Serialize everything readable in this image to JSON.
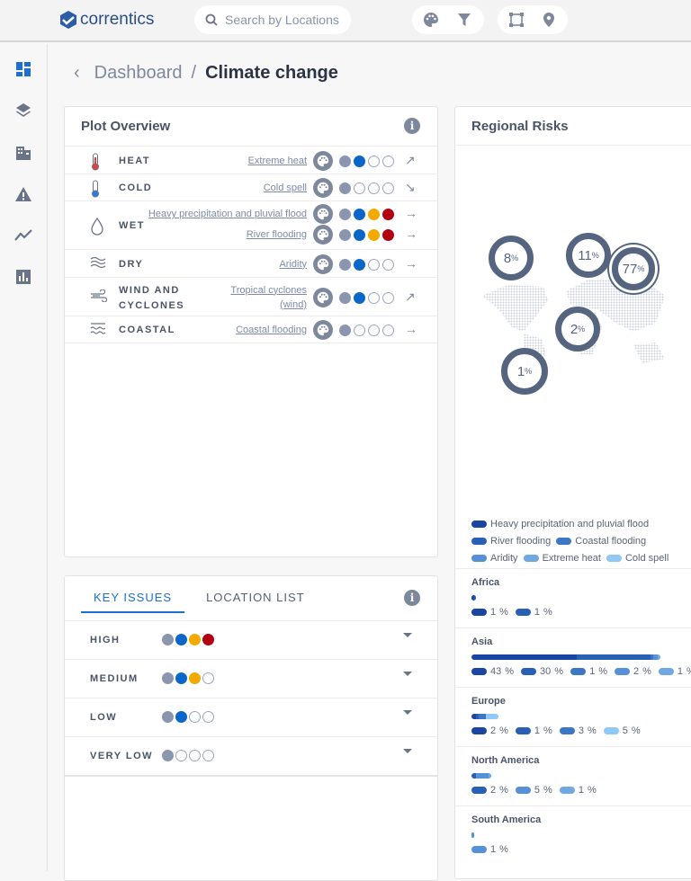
{
  "header": {
    "logo": "correntics",
    "search_placeholder": "Search by Locations"
  },
  "breadcrumb": {
    "parent": "Dashboard",
    "separator": "/",
    "current": "Climate change"
  },
  "colors": {
    "grey": "#8a96b0",
    "blue": "#0a66c8",
    "orange": "#f2aa00",
    "red": "#b00012"
  },
  "plot_overview": {
    "title": "Plot Overview",
    "rows": [
      {
        "category": "HEAT",
        "hazards": [
          {
            "name": "Extreme heat",
            "level": 2,
            "trend": "↗"
          }
        ]
      },
      {
        "category": "COLD",
        "hazards": [
          {
            "name": "Cold spell",
            "level": 1,
            "trend": "↘"
          }
        ]
      },
      {
        "category": "WET",
        "hazards": [
          {
            "name": "Heavy precipitation and pluvial flood",
            "level": 4,
            "trend": "→"
          },
          {
            "name": "River flooding",
            "level": 4,
            "trend": "→"
          }
        ]
      },
      {
        "category": "DRY",
        "hazards": [
          {
            "name": "Aridity",
            "level": 2,
            "trend": "→"
          }
        ]
      },
      {
        "category": "WIND AND CYCLONES",
        "hazards": [
          {
            "name": "Tropical cyclones (wind)",
            "level": 2,
            "trend": "↗"
          }
        ]
      },
      {
        "category": "COASTAL",
        "hazards": [
          {
            "name": "Coastal flooding",
            "level": 1,
            "trend": "→"
          }
        ]
      }
    ]
  },
  "key_issues": {
    "tabs": [
      "KEY ISSUES",
      "LOCATION LIST"
    ],
    "rows": [
      {
        "label": "HIGH",
        "level": 4
      },
      {
        "label": "MEDIUM",
        "level": 3
      },
      {
        "label": "LOW",
        "level": 2
      },
      {
        "label": "VERY LOW",
        "level": 1
      }
    ]
  },
  "regional_risks": {
    "title": "Regional Risks",
    "map_markers": [
      {
        "region": "North America",
        "value": "8"
      },
      {
        "region": "Europe",
        "value": "11"
      },
      {
        "region": "Asia",
        "value": "77"
      },
      {
        "region": "Africa",
        "value": "2"
      },
      {
        "region": "South America",
        "value": "1"
      }
    ],
    "percent_sign": "%",
    "legend": [
      {
        "name": "Heavy precipitation and pluvial flood",
        "color": "#1a45a0"
      },
      {
        "name": "River flooding",
        "color": "#2a5fb6"
      },
      {
        "name": "Coastal flooding",
        "color": "#3b77c6"
      },
      {
        "name": "Aridity",
        "color": "#5690d6"
      },
      {
        "name": "Extreme heat",
        "color": "#70a8e4"
      },
      {
        "name": "Cold spell",
        "color": "#90c8f6"
      }
    ],
    "regions": [
      {
        "name": "Africa",
        "values": [
          {
            "hazard": 0,
            "pct": 1
          },
          {
            "hazard": 1,
            "pct": 1
          }
        ]
      },
      {
        "name": "Asia",
        "values": [
          {
            "hazard": 0,
            "pct": 43
          },
          {
            "hazard": 1,
            "pct": 30
          },
          {
            "hazard": 2,
            "pct": 1
          },
          {
            "hazard": 3,
            "pct": 2
          },
          {
            "hazard": 4,
            "pct": 1
          }
        ]
      },
      {
        "name": "Europe",
        "values": [
          {
            "hazard": 0,
            "pct": 2
          },
          {
            "hazard": 1,
            "pct": 1
          },
          {
            "hazard": 2,
            "pct": 3
          },
          {
            "hazard": 5,
            "pct": 5
          }
        ]
      },
      {
        "name": "North America",
        "values": [
          {
            "hazard": 1,
            "pct": 2
          },
          {
            "hazard": 3,
            "pct": 5
          },
          {
            "hazard": 4,
            "pct": 1
          }
        ]
      },
      {
        "name": "South America",
        "values": [
          {
            "hazard": 3,
            "pct": 1
          }
        ]
      }
    ]
  }
}
